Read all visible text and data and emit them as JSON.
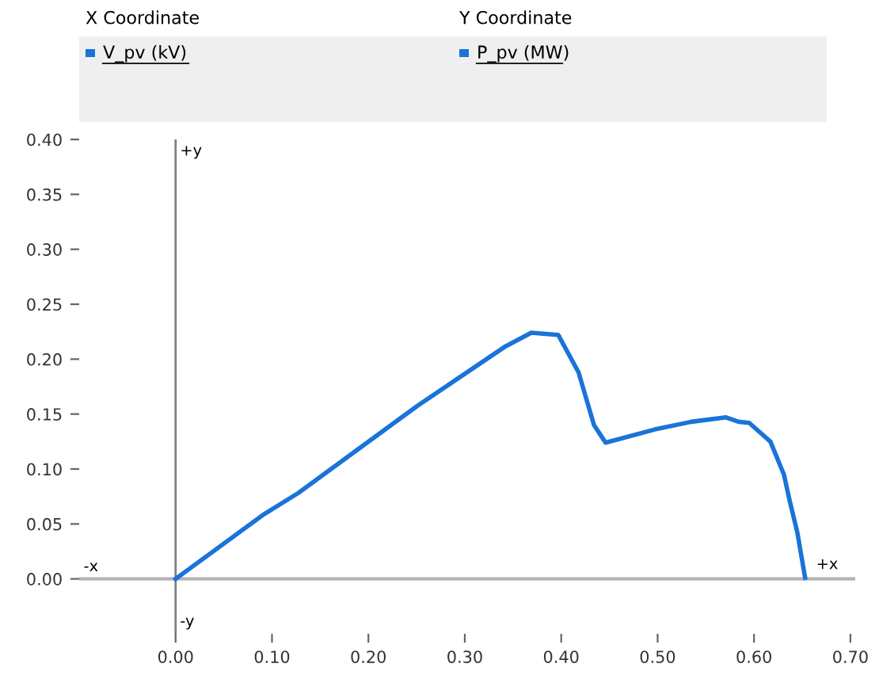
{
  "chart_data": {
    "type": "line",
    "xlabel": "V_pv (kV)",
    "ylabel": "P_pv (MW)",
    "annotations": [
      "X Coordinate",
      "Y Coordinate",
      "+y",
      "-y",
      "-x",
      "+x"
    ],
    "series": [
      {
        "color": "#1a73d9",
        "x": [
          0,
          0.092,
          0.127,
          0.25,
          0.341,
          0.369,
          0.397,
          0.418,
          0.434,
          0.446,
          0.497,
          0.535,
          0.571,
          0.584,
          0.595,
          0.617,
          0.631,
          0.637,
          0.645,
          0.653
        ],
        "values": [
          0,
          0.059,
          0.078,
          0.157,
          0.211,
          0.224,
          0.222,
          0.188,
          0.14,
          0.124,
          0.136,
          0.143,
          0.147,
          0.143,
          0.142,
          0.125,
          0.095,
          0.071,
          0.042,
          0.001
        ]
      }
    ],
    "xlim": [
      -0.1,
      0.705
    ],
    "ylim": [
      -0.05,
      0.4
    ],
    "xticks": [
      {
        "value": 0,
        "label": "0.00"
      },
      {
        "value": 0.1,
        "label": "0.10"
      },
      {
        "value": 0.2,
        "label": "0.20"
      },
      {
        "value": 0.3,
        "label": "0.30"
      },
      {
        "value": 0.4,
        "label": "0.40"
      },
      {
        "value": 0.5,
        "label": "0.50"
      },
      {
        "value": 0.6,
        "label": "0.60"
      },
      {
        "value": 0.7,
        "label": "0.70"
      }
    ],
    "yticks": [
      {
        "value": 0,
        "label": "0.00"
      },
      {
        "value": 0.05,
        "label": "0.05"
      },
      {
        "value": 0.1,
        "label": "0.10"
      },
      {
        "value": 0.15,
        "label": "0.15"
      },
      {
        "value": 0.2,
        "label": "0.20"
      },
      {
        "value": 0.25,
        "label": "0.25"
      },
      {
        "value": 0.3,
        "label": "0.30"
      },
      {
        "value": 0.35,
        "label": "0.35"
      },
      {
        "value": 0.4,
        "label": "0.40"
      }
    ],
    "ref_lines": [
      {
        "axis": "x",
        "value": 0,
        "color": "#808080"
      },
      {
        "axis": "y",
        "value": 0,
        "color": "#b4b4b4"
      }
    ],
    "grid": false,
    "legend": false,
    "marker": "none",
    "line_style": "solid"
  }
}
